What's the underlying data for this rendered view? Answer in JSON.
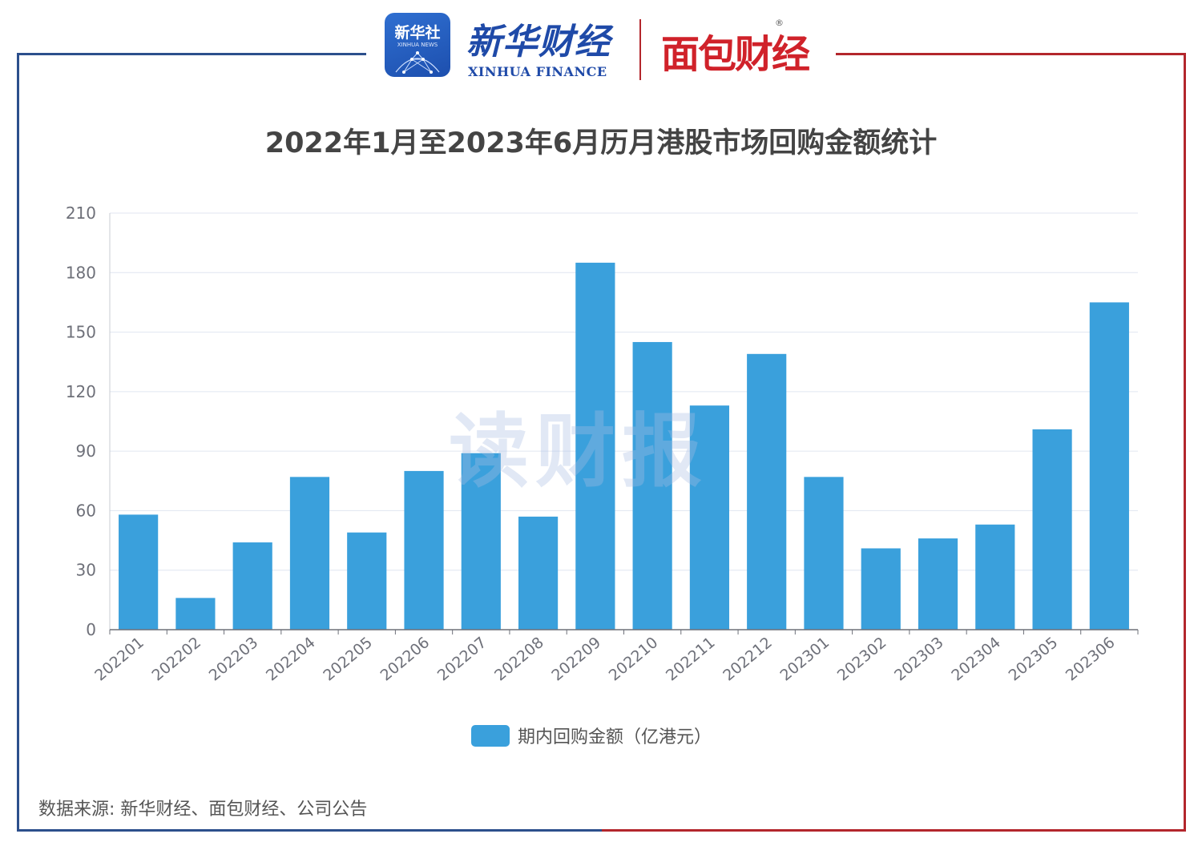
{
  "header": {
    "xinhua_badge": "新华社",
    "xinhua_badge_en": "XINHUA NEWS",
    "xinhua_finance_cn": "新华财经",
    "xinhua_finance_en": "XINHUA FINANCE",
    "mianbao_logo": "面包财经",
    "mianbao_reg": "®"
  },
  "watermark": "读财报",
  "source": "数据来源: 新华财经、面包财经、公司公告",
  "colors": {
    "bar": "#3aa0dc",
    "frame_left": "#2c4f8c",
    "frame_right": "#b3262c",
    "logo_red": "#d0222a"
  },
  "chart_data": {
    "type": "bar",
    "title": "2022年1月至2023年6月历月港股市场回购金额统计",
    "categories": [
      "202201",
      "202202",
      "202203",
      "202204",
      "202205",
      "202206",
      "202207",
      "202208",
      "202209",
      "202210",
      "202211",
      "202212",
      "202301",
      "202302",
      "202303",
      "202304",
      "202305",
      "202306"
    ],
    "series": [
      {
        "name": "期内回购金额（亿港元）",
        "values": [
          58,
          16,
          44,
          77,
          49,
          80,
          89,
          57,
          185,
          145,
          113,
          139,
          77,
          41,
          46,
          53,
          101,
          165
        ]
      }
    ],
    "yticks": [
      0,
      30,
      60,
      90,
      120,
      150,
      180,
      210
    ],
    "ylim": [
      0,
      210
    ],
    "grid": true,
    "legend": "bottom-center"
  }
}
